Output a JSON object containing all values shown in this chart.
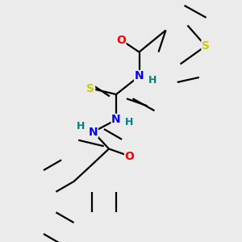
{
  "background_color": "#ebebeb",
  "bond_color": "#000000",
  "atom_colors": {
    "O": "#ff0000",
    "N": "#0000ff",
    "S_thio": "#cccc00",
    "S_thiophene": "#cccc00",
    "H": "#008080",
    "C": "#000000"
  },
  "lw": 1.6,
  "font_size_heavy": 10,
  "font_size_H": 9
}
